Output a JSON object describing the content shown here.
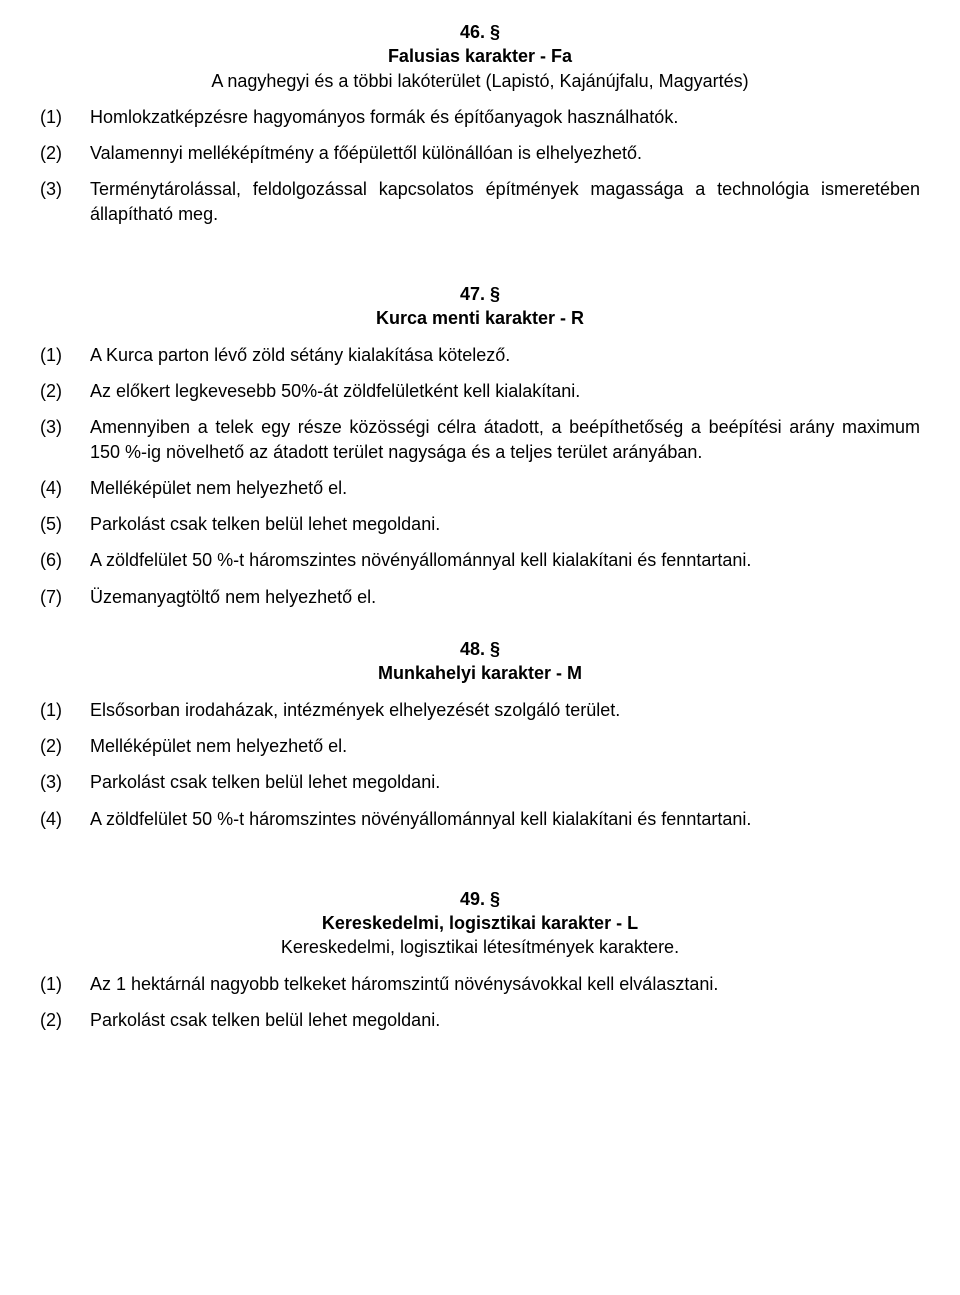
{
  "section46": {
    "num": "46. §",
    "title": "Falusias karakter - Fa",
    "subtitle": "A nagyhegyi és a többi lakóterület (Lapistó, Kajánújfalu, Magyartés)",
    "items": [
      {
        "n": "(1)",
        "t": "Homlokzatképzésre hagyományos formák és építőanyagok használhatók."
      },
      {
        "n": "(2)",
        "t": "Valamennyi melléképítmény a főépülettől különállóan is elhelyezhető."
      },
      {
        "n": "(3)",
        "t": "Terménytárolással, feldolgozással kapcsolatos építmények magassága a technológia ismeretében állapítható meg."
      }
    ]
  },
  "section47": {
    "num": "47. §",
    "title": "Kurca menti karakter - R",
    "items": [
      {
        "n": "(1)",
        "t": "A Kurca parton lévő zöld sétány kialakítása kötelező."
      },
      {
        "n": "(2)",
        "t": "Az előkert legkevesebb 50%-át zöldfelületként kell kialakítani."
      },
      {
        "n": "(3)",
        "t": "Amennyiben a telek egy része közösségi célra átadott, a beépíthetőség a beépítési arány maximum 150 %-ig növelhető az átadott terület nagysága és a teljes terület arányában."
      },
      {
        "n": "(4)",
        "t": "Melléképület nem helyezhető el."
      },
      {
        "n": "(5)",
        "t": "Parkolást csak telken belül lehet megoldani."
      },
      {
        "n": "(6)",
        "t": "A zöldfelület 50 %-t háromszintes növényállománnyal kell kialakítani és fenntartani."
      },
      {
        "n": "(7)",
        "t": "Üzemanyagtöltő nem helyezhető el."
      }
    ]
  },
  "section48": {
    "num": "48. §",
    "title": "Munkahelyi karakter - M",
    "items": [
      {
        "n": "(1)",
        "t": "Elsősorban irodaházak, intézmények elhelyezését szolgáló terület."
      },
      {
        "n": "(2)",
        "t": "Melléképület nem helyezhető el."
      },
      {
        "n": "(3)",
        "t": "Parkolást csak telken belül lehet megoldani."
      },
      {
        "n": "(4)",
        "t": "A zöldfelület 50 %-t háromszintes növényállománnyal kell kialakítani és fenntartani."
      }
    ]
  },
  "section49": {
    "num": "49. §",
    "title": "Kereskedelmi, logisztikai karakter - L",
    "subtitle": "Kereskedelmi, logisztikai létesítmények karaktere.",
    "items": [
      {
        "n": "(1)",
        "t": "Az 1 hektárnál nagyobb telkeket háromszintű növénysávokkal kell elválasztani."
      },
      {
        "n": "(2)",
        "t": "Parkolást csak telken belül lehet megoldani."
      }
    ]
  }
}
